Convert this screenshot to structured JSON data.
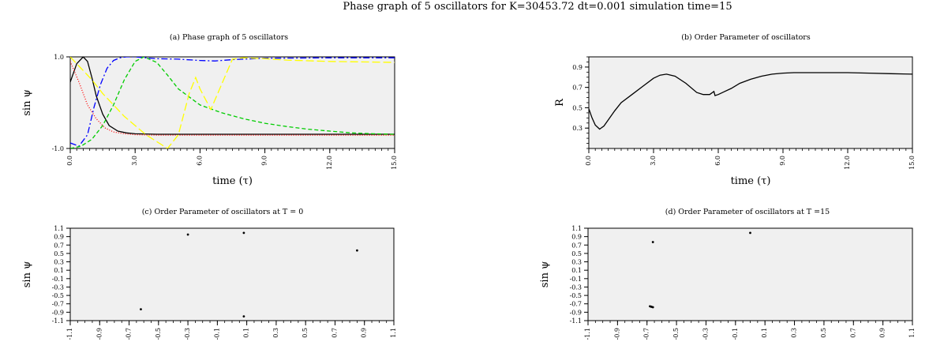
{
  "figure_title": "Phase graph of 5 oscillators for K=30453.72 dt=0.001 simulation time=15",
  "chart_data": [
    {
      "type": "line",
      "title": "(a) Phase graph of 5 oscillators",
      "xlabel": "time (τ)",
      "ylabel": "sin ψ",
      "xlim": [
        0,
        15
      ],
      "ylim": [
        -1,
        1
      ],
      "xticks": [
        "0.0",
        "3.0",
        "6.0",
        "9.0",
        "12.0",
        "15.0"
      ],
      "yticks": [
        "1.0",
        "-1.0"
      ],
      "grid": false,
      "series": [
        {
          "color": "#000000",
          "dash": "solid",
          "x": [
            0,
            0.3,
            0.6,
            0.8,
            1.0,
            1.2,
            1.5,
            1.8,
            2.2,
            2.6,
            3.0,
            4.0,
            5.0,
            7.0,
            10.0,
            15.0
          ],
          "y": [
            0.45,
            0.85,
            1.0,
            0.9,
            0.55,
            0.15,
            -0.25,
            -0.5,
            -0.62,
            -0.66,
            -0.68,
            -0.69,
            -0.69,
            -0.69,
            -0.69,
            -0.69
          ]
        },
        {
          "color": "#ff0000",
          "dash": "1,2",
          "x": [
            0,
            0.4,
            0.8,
            1.2,
            1.6,
            2.0,
            2.5,
            3.0,
            4.0,
            5.0,
            7.0,
            10.0,
            15.0
          ],
          "y": [
            0.9,
            0.45,
            -0.05,
            -0.35,
            -0.55,
            -0.64,
            -0.68,
            -0.7,
            -0.71,
            -0.71,
            -0.71,
            -0.71,
            -0.71
          ]
        },
        {
          "color": "#0000ff",
          "dash": "8,3,2,3",
          "x": [
            0,
            0.4,
            0.8,
            1.1,
            1.4,
            1.7,
            2.0,
            2.3,
            2.6,
            3.0,
            3.5,
            4.0,
            5.0,
            6.0,
            6.7,
            7.5,
            9.0,
            12.0,
            15.0
          ],
          "y": [
            -0.88,
            -0.95,
            -0.7,
            -0.1,
            0.4,
            0.75,
            0.92,
            0.98,
            1.0,
            1.0,
            0.98,
            0.96,
            0.95,
            0.92,
            0.91,
            0.94,
            0.97,
            0.98,
            0.98
          ]
        },
        {
          "color": "#00cc00",
          "dash": "5,3",
          "x": [
            0,
            0.5,
            1.0,
            1.5,
            2.0,
            2.5,
            3.0,
            3.4,
            4.0,
            4.5,
            5.0,
            6.0,
            7.0,
            8.0,
            9.0,
            10.0,
            11.0,
            12.0,
            13.0,
            14.0,
            15.0
          ],
          "y": [
            -1.0,
            -0.95,
            -0.8,
            -0.5,
            -0.05,
            0.5,
            0.9,
            1.0,
            0.88,
            0.6,
            0.3,
            -0.05,
            -0.22,
            -0.35,
            -0.45,
            -0.52,
            -0.58,
            -0.62,
            -0.66,
            -0.68,
            -0.69
          ]
        },
        {
          "color": "#ffff00",
          "dash": "10,4",
          "x": [
            0,
            0.5,
            1.0,
            1.5,
            2.0,
            2.5,
            3.0,
            3.5,
            4.0,
            4.5,
            5.0,
            5.5,
            5.8,
            6.0,
            6.5,
            7.0,
            7.5,
            8.0,
            9.0,
            10.0,
            12.0,
            15.0
          ],
          "y": [
            1.0,
            0.75,
            0.5,
            0.2,
            -0.05,
            -0.3,
            -0.5,
            -0.7,
            -0.85,
            -1.0,
            -0.7,
            0.2,
            0.55,
            0.3,
            -0.15,
            0.4,
            0.95,
            0.98,
            0.96,
            0.93,
            0.9,
            0.88
          ]
        }
      ]
    },
    {
      "type": "line",
      "title": "(b) Order Parameter of oscillators",
      "xlabel": "time (τ)",
      "ylabel": "R",
      "xlim": [
        0,
        15
      ],
      "ylim": [
        0.1,
        1.0
      ],
      "xticks": [
        "0.0",
        "3.0",
        "6.0",
        "9.0",
        "12.0",
        "15.0"
      ],
      "yticks": [
        "0.9",
        "0.7",
        "0.5",
        "0.3"
      ],
      "grid": false,
      "series": [
        {
          "color": "#000000",
          "dash": "solid",
          "x": [
            0,
            0.15,
            0.3,
            0.5,
            0.7,
            0.9,
            1.2,
            1.5,
            2.0,
            2.5,
            3.0,
            3.3,
            3.6,
            4.0,
            4.5,
            5.0,
            5.3,
            5.6,
            5.8,
            5.85,
            6.0,
            6.3,
            6.6,
            7.0,
            7.5,
            8.0,
            8.5,
            9.0,
            9.5,
            10.0,
            11.0,
            12.0,
            13.0,
            14.0,
            15.0
          ],
          "y": [
            0.49,
            0.4,
            0.33,
            0.29,
            0.32,
            0.38,
            0.47,
            0.55,
            0.63,
            0.71,
            0.79,
            0.82,
            0.83,
            0.81,
            0.74,
            0.65,
            0.63,
            0.63,
            0.66,
            0.62,
            0.63,
            0.66,
            0.69,
            0.74,
            0.78,
            0.81,
            0.83,
            0.84,
            0.845,
            0.845,
            0.845,
            0.845,
            0.84,
            0.835,
            0.83
          ]
        }
      ]
    },
    {
      "type": "scatter",
      "title": "(c) Order Parameter of oscillators at T = 0",
      "ylabel": "sin ψ",
      "xlim": [
        -1.1,
        1.1
      ],
      "ylim": [
        -1.1,
        1.1
      ],
      "xticks": [
        "-1.1",
        "-0.9",
        "-0.7",
        "-0.5",
        "-0.3",
        "-0.1",
        "0.1",
        "0.3",
        "0.5",
        "0.7",
        "0.9",
        "1.1"
      ],
      "yticks": [
        "1.1",
        "0.9",
        "0.7",
        "0.5",
        "0.3",
        "0.1",
        "-0.1",
        "-0.3",
        "-0.5",
        "-0.7",
        "-0.9",
        "-1.1"
      ],
      "grid": false,
      "series": [
        {
          "color": "#000000",
          "x": [
            -0.3,
            0.08,
            0.85,
            -0.62,
            0.08
          ],
          "y": [
            0.95,
            0.99,
            0.57,
            -0.83,
            -1.0
          ]
        }
      ]
    },
    {
      "type": "scatter",
      "title": "(d) Order Parameter of oscillators at T =15",
      "ylabel": "sin ψ",
      "xlim": [
        -1.1,
        1.1
      ],
      "ylim": [
        -1.1,
        1.1
      ],
      "xticks": [
        "-1.1",
        "-0.9",
        "-0.7",
        "-0.5",
        "-0.3",
        "-0.1",
        "0.1",
        "0.3",
        "0.5",
        "0.7",
        "0.9",
        "1.1"
      ],
      "yticks": [
        "1.1",
        "0.9",
        "0.7",
        "0.5",
        "0.3",
        "0.1",
        "-0.1",
        "-0.3",
        "-0.5",
        "-0.7",
        "-0.9",
        "-1.1"
      ],
      "grid": false,
      "series": [
        {
          "color": "#000000",
          "x": [
            0.0,
            -0.66,
            -0.68,
            -0.67,
            -0.66
          ],
          "y": [
            0.99,
            0.77,
            -0.76,
            -0.77,
            -0.78
          ]
        }
      ]
    }
  ]
}
